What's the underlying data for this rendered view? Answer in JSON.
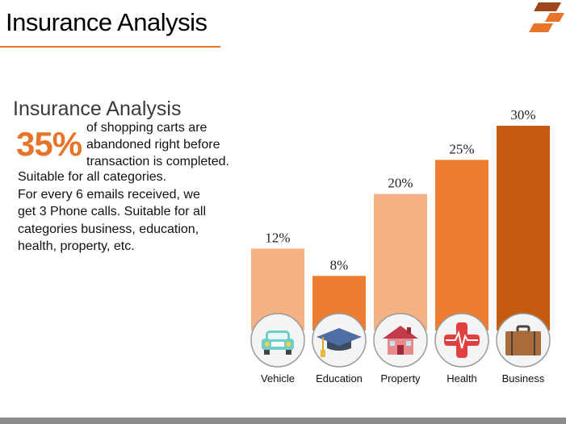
{
  "slide": {
    "title": "Insurance Analysis",
    "subtitle": "Insurance Analysis",
    "highlight_value": "35%",
    "highlight_text_lines": [
      "of shopping carts are",
      "abandoned right before",
      "transaction is completed."
    ],
    "body_lines": [
      "Suitable for all categories.",
      "For every 6 emails received, we",
      "get 3 Phone calls. Suitable for all",
      "categories business, education,",
      "health, property, etc."
    ]
  },
  "colors": {
    "accent": "#e8742a",
    "light": "#f4b183",
    "dark": "#c55a11",
    "logo_dark": "#a0461b"
  },
  "chart_data": {
    "type": "bar",
    "categories": [
      "Vehicle",
      "Education",
      "Property",
      "Health",
      "Business"
    ],
    "values": [
      12,
      8,
      20,
      25,
      30
    ],
    "value_labels": [
      "12%",
      "8%",
      "20%",
      "25%",
      "30%"
    ],
    "bar_colors": [
      "#f4b183",
      "#ed7d31",
      "#f4b183",
      "#ed7d31",
      "#c55a11"
    ],
    "icons": [
      "car-icon",
      "graduation-cap-icon",
      "house-icon",
      "health-cross-icon",
      "briefcase-icon"
    ],
    "title": "",
    "xlabel": "",
    "ylabel": "",
    "ylim": [
      0,
      30
    ],
    "grid": false,
    "legend": "none"
  }
}
